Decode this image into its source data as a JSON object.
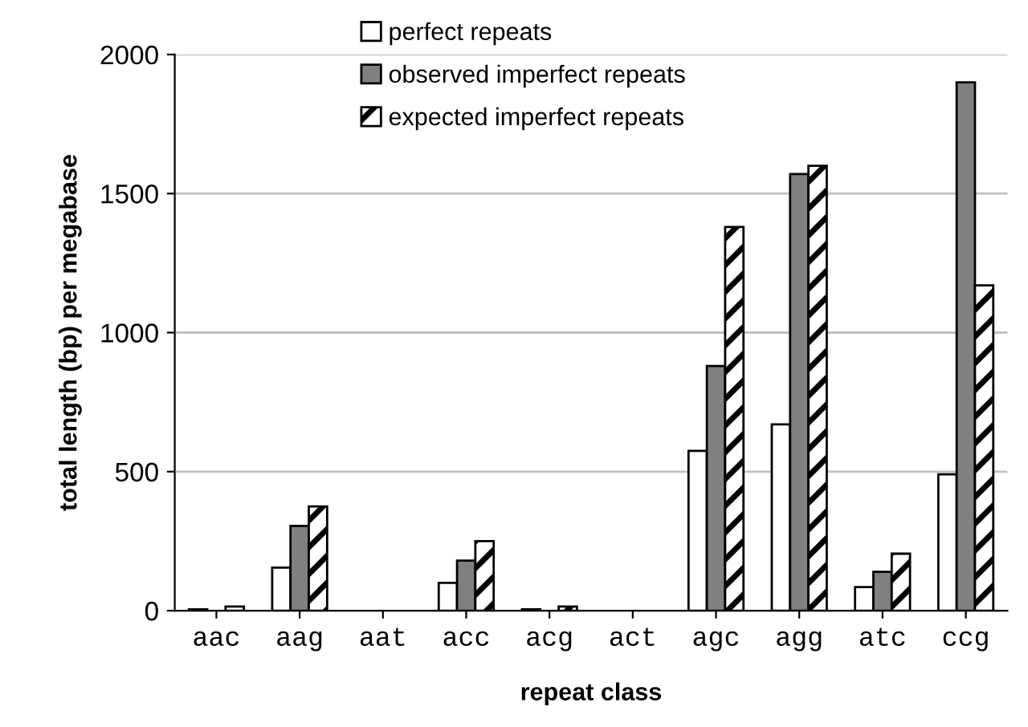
{
  "chart_data": {
    "type": "bar",
    "xlabel": "repeat class",
    "ylabel": "total length (bp) per megabase",
    "categories": [
      "aac",
      "aag",
      "aat",
      "acc",
      "acg",
      "act",
      "agc",
      "agg",
      "atc",
      "ccg"
    ],
    "series": [
      {
        "name": "perfect repeats",
        "color": "#ffffff",
        "values": [
          5,
          155,
          null,
          100,
          5,
          null,
          575,
          670,
          85,
          490
        ]
      },
      {
        "name": "observed imperfect repeats",
        "color": "#808080",
        "values": [
          null,
          305,
          null,
          180,
          null,
          null,
          880,
          1570,
          140,
          1900
        ]
      },
      {
        "name": "expected imperfect repeats",
        "color": "#000000",
        "values": [
          15,
          375,
          null,
          250,
          15,
          null,
          1380,
          1600,
          205,
          1170
        ]
      }
    ],
    "ylim": [
      0,
      2000
    ],
    "yticks": [
      0,
      500,
      1000,
      1500,
      2000
    ],
    "grid": "y",
    "legend": "top left"
  }
}
